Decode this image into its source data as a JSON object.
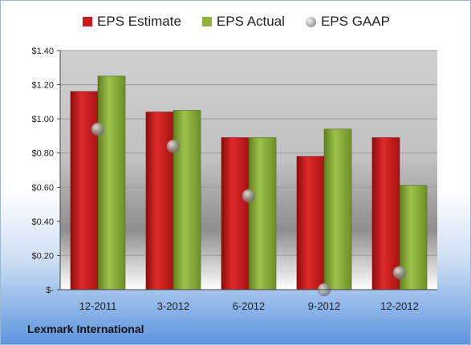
{
  "company": "Lexmark International",
  "colors": {
    "estimate": "#cc1a1a",
    "actual": "#8db33a",
    "gaap": "#a8a8a8"
  },
  "chart_data": {
    "type": "bar",
    "categories": [
      "12-2011",
      "3-2012",
      "6-2012",
      "9-2012",
      "12-2012"
    ],
    "series": [
      {
        "name": "EPS Estimate",
        "values": [
          1.16,
          1.04,
          0.89,
          0.78,
          0.89
        ]
      },
      {
        "name": "EPS Actual",
        "values": [
          1.25,
          1.05,
          0.89,
          0.94,
          0.61
        ]
      },
      {
        "name": "EPS GAAP",
        "values": [
          0.94,
          0.84,
          0.55,
          0.0,
          0.1
        ]
      }
    ],
    "ylim": [
      0,
      1.4
    ],
    "yticks": [
      "$-",
      "$0.20",
      "$0.40",
      "$0.60",
      "$0.80",
      "$1.00",
      "$1.20",
      "$1.40"
    ],
    "legend_position": "top",
    "grid": true
  }
}
